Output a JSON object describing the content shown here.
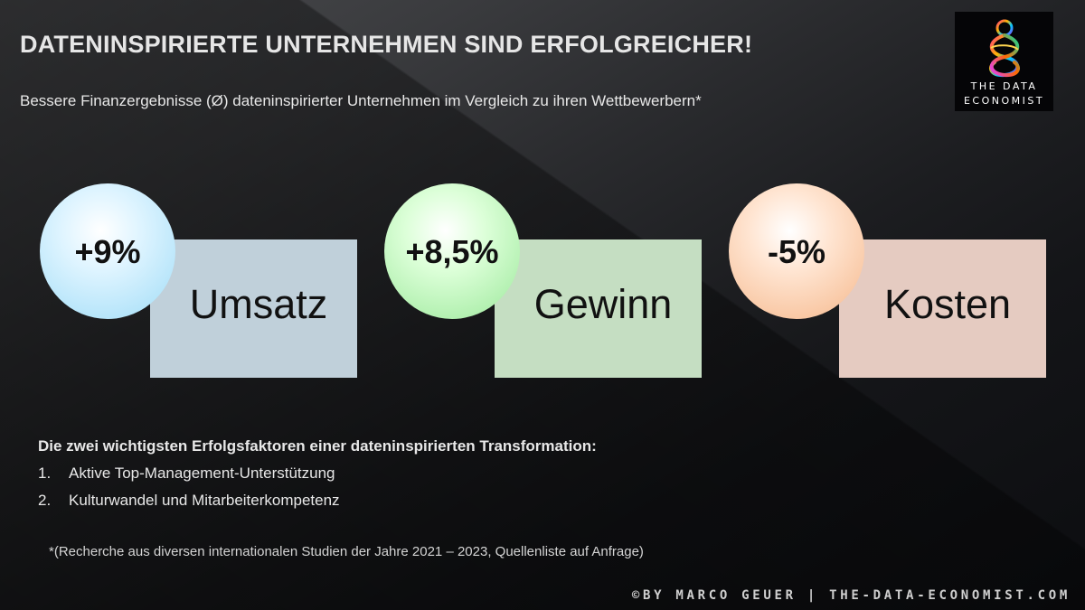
{
  "slide": {
    "title": "DATENINSPIRIERTE UNTERNEHMEN SIND ERFOLGREICHER!",
    "subtitle": "Bessere Finanzergebnisse (Ø) dateninspirierter Unternehmen im Vergleich zu ihren Wettbewerbern*"
  },
  "logo": {
    "line1": "THE DATA",
    "line2": "ECONOMIST",
    "icon": "colorful-knot-figure-icon"
  },
  "kpis": [
    {
      "value": "+9%",
      "label": "Umsatz",
      "color": "#c0d0da",
      "circle_color": "#aee2f8"
    },
    {
      "value": "+8,5%",
      "label": "Gewinn",
      "color": "#c5dec2",
      "circle_color": "#aef0a8"
    },
    {
      "value": "-5%",
      "label": "Kosten",
      "color": "#e5cbc1",
      "circle_color": "#f8c39c"
    }
  ],
  "factors": {
    "title": "Die zwei wichtigsten Erfolgsfaktoren einer dateninspirierten Transformation:",
    "items": [
      {
        "num": "1.",
        "text": "Aktive Top-Management-Unterstützung"
      },
      {
        "num": "2.",
        "text": "Kulturwandel und Mitarbeiterkompetenz"
      }
    ]
  },
  "footnote": "*(Recherche aus diversen internationalen Studien der Jahre 2021 – 2023, Quellenliste auf Anfrage)",
  "credit": "©BY MARCO GEUER | THE-DATA-ECONOMIST.COM"
}
